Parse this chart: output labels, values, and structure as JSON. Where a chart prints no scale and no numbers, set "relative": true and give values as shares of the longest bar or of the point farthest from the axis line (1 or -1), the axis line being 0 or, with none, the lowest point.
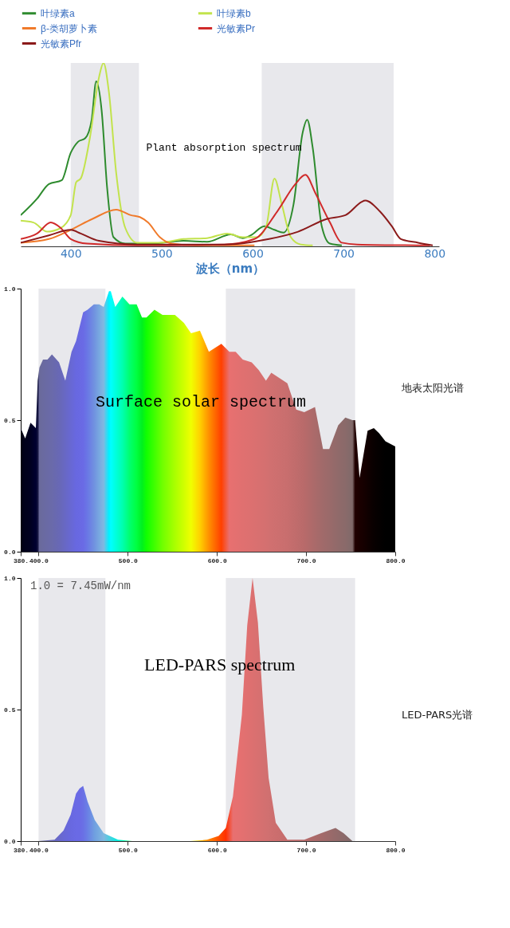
{
  "chart_data": [
    {
      "type": "line",
      "title": "Plant absorption spectrum",
      "xlabel": "波长（nm）",
      "relative": true,
      "legend": "top",
      "xlim": [
        345,
        805
      ],
      "xticks": [
        400,
        500,
        600,
        700,
        800
      ],
      "bands": [
        {
          "axis": "x",
          "from": 400,
          "to": 475,
          "color": "#e8e8ec"
        },
        {
          "axis": "x",
          "from": 610,
          "to": 755,
          "color": "#e8e8ec"
        }
      ],
      "series": [
        {
          "name": "叶绿素a",
          "color": "#2e8b2e",
          "x": [
            345,
            363,
            376,
            390,
            400,
            408,
            416,
            423,
            428,
            434,
            440,
            447,
            460,
            489,
            524,
            550,
            576,
            589,
            598,
            613,
            624,
            634,
            645,
            655,
            660,
            666,
            676,
            685,
            698
          ],
          "values": [
            0.17,
            0.26,
            0.34,
            0.36,
            0.51,
            0.57,
            0.59,
            0.69,
            0.9,
            0.74,
            0.32,
            0.05,
            0.015,
            0.015,
            0.03,
            0.025,
            0.065,
            0.045,
            0.06,
            0.11,
            0.09,
            0.075,
            0.23,
            0.62,
            0.69,
            0.54,
            0.11,
            0.015,
            0.005
          ]
        },
        {
          "name": "叶绿素b",
          "color": "#c2e34c",
          "x": [
            345,
            359,
            374,
            389,
            400,
            406,
            411,
            421,
            431,
            436,
            442,
            450,
            460,
            473,
            498,
            524,
            550,
            572,
            589,
            605,
            615,
            624,
            632,
            642,
            653,
            666
          ],
          "values": [
            0.14,
            0.13,
            0.08,
            0.1,
            0.17,
            0.35,
            0.37,
            0.59,
            0.92,
            1.0,
            0.84,
            0.4,
            0.1,
            0.02,
            0.02,
            0.04,
            0.045,
            0.07,
            0.05,
            0.05,
            0.11,
            0.37,
            0.23,
            0.05,
            0.01,
            0.005
          ]
        },
        {
          "name": "β-类胡萝卜素",
          "color": "#f07a2a",
          "x": [
            345,
            376,
            400,
            424,
            450,
            466,
            476,
            485,
            498,
            511,
            537,
            602
          ],
          "values": [
            0.02,
            0.04,
            0.09,
            0.15,
            0.2,
            0.17,
            0.16,
            0.13,
            0.05,
            0.015,
            0.005,
            0.005
          ]
        },
        {
          "name": "光敏素Pr",
          "color": "#d02a2a",
          "x": [
            345,
            363,
            378,
            389,
            400,
            418,
            473,
            569,
            602,
            627,
            647,
            658,
            669,
            685,
            698,
            715,
            795
          ],
          "values": [
            0.04,
            0.07,
            0.13,
            0.1,
            0.04,
            0.015,
            0.005,
            0.01,
            0.04,
            0.19,
            0.34,
            0.39,
            0.29,
            0.13,
            0.02,
            0.01,
            0.005
          ]
        },
        {
          "name": "光敏素Pfr",
          "color": "#8b1a1a",
          "x": [
            345,
            376,
            400,
            411,
            431,
            473,
            569,
            618,
            650,
            682,
            702,
            724,
            740,
            753,
            763,
            782,
            798
          ],
          "values": [
            0.02,
            0.06,
            0.09,
            0.07,
            0.03,
            0.01,
            0.01,
            0.04,
            0.08,
            0.15,
            0.17,
            0.25,
            0.19,
            0.11,
            0.04,
            0.02,
            0.005
          ]
        }
      ]
    },
    {
      "type": "area",
      "title": "Surface solar spectrum",
      "xlim": [
        380,
        800
      ],
      "ylim": [
        0,
        1.0
      ],
      "xticks": [
        {
          "value": 380,
          "label": "380."
        },
        {
          "value": 400,
          "label": "400.0"
        },
        {
          "value": 500,
          "label": "500.0"
        },
        {
          "value": 600,
          "label": "600.0"
        },
        {
          "value": 700,
          "label": "700.0"
        },
        {
          "value": 800,
          "label": "800.0"
        }
      ],
      "yticks": [
        {
          "value": 0,
          "label": "0.0"
        },
        {
          "value": 0.5,
          "label": "0.5"
        },
        {
          "value": 1.0,
          "label": "1.0"
        }
      ],
      "bands": [
        {
          "axis": "x",
          "from": 400,
          "to": 475,
          "color": "#e8e8ec"
        },
        {
          "axis": "x",
          "from": 610,
          "to": 755,
          "color": "#e8e8ec"
        }
      ],
      "x": [
        380,
        385,
        391,
        397,
        399,
        401,
        405,
        410,
        415,
        423,
        430,
        437,
        442,
        450,
        455,
        462,
        468,
        473,
        479,
        481,
        486,
        494,
        502,
        510,
        516,
        521,
        530,
        539,
        553,
        563,
        571,
        581,
        591,
        605,
        614,
        621,
        629,
        639,
        647,
        655,
        661,
        679,
        689,
        698,
        710,
        719,
        726,
        736,
        744,
        752,
        755,
        760,
        765,
        769,
        776,
        782,
        789,
        800
      ],
      "series": [
        {
          "name": "地表太阳光谱",
          "values": [
            0.47,
            0.43,
            0.49,
            0.47,
            0.65,
            0.7,
            0.73,
            0.73,
            0.75,
            0.72,
            0.65,
            0.76,
            0.8,
            0.91,
            0.92,
            0.94,
            0.94,
            0.93,
            0.99,
            0.99,
            0.93,
            0.97,
            0.94,
            0.94,
            0.89,
            0.89,
            0.92,
            0.9,
            0.9,
            0.87,
            0.83,
            0.84,
            0.76,
            0.79,
            0.76,
            0.76,
            0.73,
            0.72,
            0.69,
            0.65,
            0.68,
            0.64,
            0.54,
            0.53,
            0.55,
            0.39,
            0.39,
            0.48,
            0.51,
            0.5,
            0.5,
            0.28,
            0.38,
            0.46,
            0.47,
            0.45,
            0.42,
            0.4
          ],
          "colors": [
            "#000010",
            "#00001a",
            "#000020",
            "#000030",
            "#10103a",
            "#6a6a9a",
            "#6a6aa0",
            "#6a6aa5",
            "#6a6aaa",
            "#6868b5",
            "#6868c5",
            "#6868d5",
            "#6868e0",
            "#6a6ae5",
            "#6a78e5",
            "#7090e0",
            "#78a8e0",
            "#80b8e0",
            "#00f0ff",
            "#00ffff",
            "#00ffe0",
            "#00ffb0",
            "#00ff70",
            "#00ff40",
            "#00f020",
            "#10ff00",
            "#40ff00",
            "#70ff00",
            "#aaff00",
            "#d0ff00",
            "#f0ff00",
            "#ffd000",
            "#ff9000",
            "#ff4000",
            "#e87070",
            "#e47070",
            "#e07070",
            "#dc7070",
            "#d87070",
            "#d47070",
            "#d07070",
            "#c86e6e",
            "#c06c6c",
            "#b86a6a",
            "#aa6a6a",
            "#a06a6a",
            "#9a6a6a",
            "#906a6a",
            "#8a6a6a",
            "#806a6a",
            "#200000",
            "#1a0000",
            "#150000",
            "#100000",
            "#080000",
            "#040000",
            "#000000",
            "#000000"
          ]
        }
      ]
    },
    {
      "type": "area",
      "title": "LED-PARS spectrum",
      "annotations": [
        "1.0 = 7.45mW/nm"
      ],
      "xlim": [
        380,
        800
      ],
      "ylim": [
        0,
        1.0
      ],
      "xticks": [
        {
          "value": 380,
          "label": "380."
        },
        {
          "value": 400,
          "label": "400.0"
        },
        {
          "value": 500,
          "label": "500.0"
        },
        {
          "value": 600,
          "label": "600.0"
        },
        {
          "value": 700,
          "label": "700.0"
        },
        {
          "value": 800,
          "label": "800.0"
        }
      ],
      "yticks": [
        {
          "value": 0,
          "label": "0.0"
        },
        {
          "value": 0.5,
          "label": "0.5"
        },
        {
          "value": 1.0,
          "label": "1.0"
        }
      ],
      "bands": [
        {
          "axis": "x",
          "from": 400,
          "to": 475,
          "color": "#e8e8ec"
        },
        {
          "axis": "x",
          "from": 610,
          "to": 755,
          "color": "#e8e8ec"
        }
      ],
      "x": [
        380,
        400,
        418,
        428,
        436,
        442,
        446,
        450,
        455,
        463,
        473,
        489,
        505,
        570,
        589,
        602,
        610,
        618,
        628,
        634,
        640,
        646,
        652,
        658,
        666,
        679,
        698,
        717,
        733,
        742,
        752,
        760,
        800
      ],
      "series": [
        {
          "name": "LED-PARS光谱",
          "values": [
            0,
            0,
            0.005,
            0.04,
            0.1,
            0.18,
            0.2,
            0.21,
            0.15,
            0.08,
            0.03,
            0.005,
            0,
            0,
            0.005,
            0.02,
            0.05,
            0.17,
            0.48,
            0.82,
            1.0,
            0.83,
            0.51,
            0.24,
            0.07,
            0.005,
            0.005,
            0.03,
            0.05,
            0.03,
            0,
            0,
            0
          ],
          "colors": [
            "#202040",
            "#6a6a9a",
            "#6868c0",
            "#6868d5",
            "#6868e0",
            "#6a6ae5",
            "#6a6ae5",
            "#6a70e5",
            "#6a80e5",
            "#70a0e0",
            "#80b8e0",
            "#00f0e0",
            "#00ff60",
            "#f0ff00",
            "#ff9000",
            "#ff5000",
            "#ff3000",
            "#e87070",
            "#e47070",
            "#e07070",
            "#dc7070",
            "#d87070",
            "#d47070",
            "#d07070",
            "#cc6e6e",
            "#c46c6c",
            "#b86a6a",
            "#a46a6a",
            "#946a6a",
            "#8c6a6a",
            "#806a6a",
            "#200000",
            "#000000"
          ]
        }
      ]
    }
  ]
}
